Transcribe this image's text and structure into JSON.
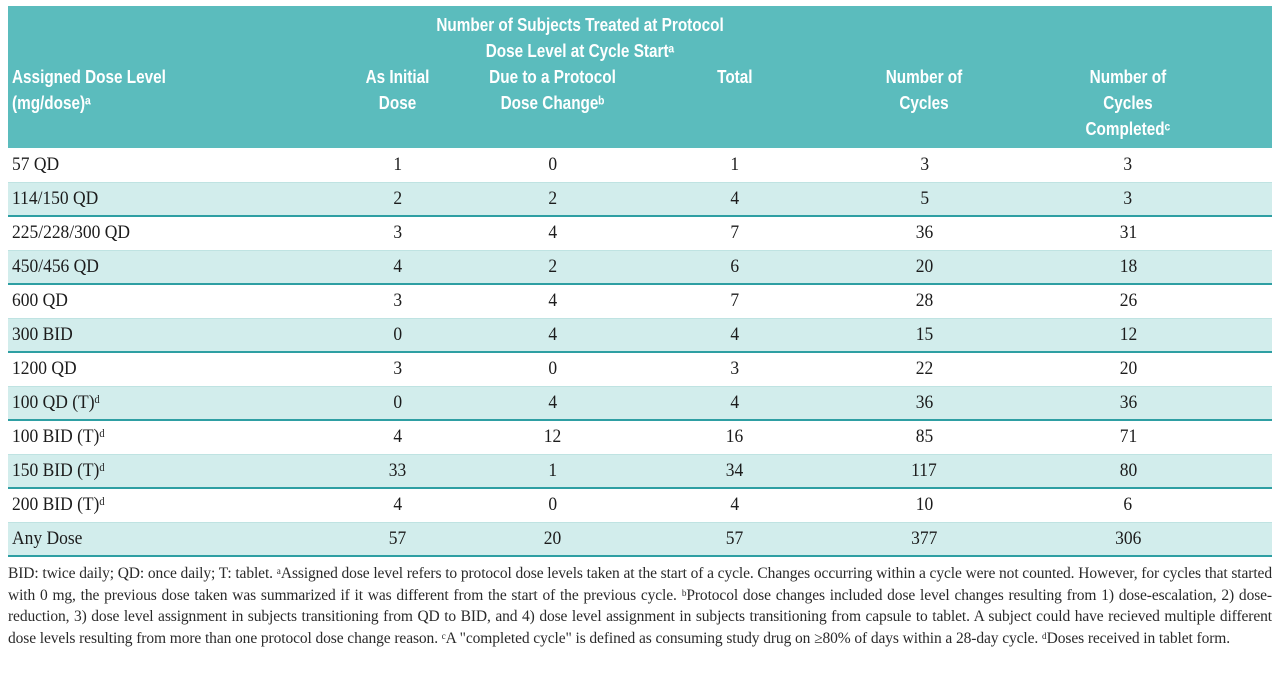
{
  "table": {
    "span_header": "Number of Subjects Treated at Protocol\nDose Level at Cycle Startᵃ",
    "columns": [
      "Assigned Dose Level\n(mg/dose)ᵃ",
      "As Initial\nDose",
      "Due to a Protocol\nDose Changeᵇ",
      "Total",
      "Number of\nCycles",
      "Number of\nCycles\nCompletedᶜ"
    ],
    "rows": [
      [
        "57 QD",
        "1",
        "0",
        "1",
        "3",
        "3"
      ],
      [
        "114/150 QD",
        "2",
        "2",
        "4",
        "5",
        "3"
      ],
      [
        "225/228/300 QD",
        "3",
        "4",
        "7",
        "36",
        "31"
      ],
      [
        "450/456 QD",
        "4",
        "2",
        "6",
        "20",
        "18"
      ],
      [
        "600 QD",
        "3",
        "4",
        "7",
        "28",
        "26"
      ],
      [
        "300 BID",
        "0",
        "4",
        "4",
        "15",
        "12"
      ],
      [
        "1200 QD",
        "3",
        "0",
        "3",
        "22",
        "20"
      ],
      [
        "100 QD (T)ᵈ",
        "0",
        "4",
        "4",
        "36",
        "36"
      ],
      [
        "100 BID (T)ᵈ",
        "4",
        "12",
        "16",
        "85",
        "71"
      ],
      [
        "150 BID (T)ᵈ",
        "33",
        "1",
        "34",
        "117",
        "80"
      ],
      [
        "200 BID (T)ᵈ",
        "4",
        "0",
        "4",
        "10",
        "6"
      ],
      [
        "Any Dose",
        "57",
        "20",
        "57",
        "377",
        "306"
      ]
    ]
  },
  "footnote": "BID: twice daily; QD: once daily; T: tablet. ᵃAssigned dose level refers to protocol dose levels taken at the start of a cycle. Changes occurring within a cycle were not counted. However, for cycles that started with 0 mg, the previous dose taken was summarized if it was different from the start of the previous cycle. ᵇProtocol dose changes included dose level changes resulting from 1) dose-escalation, 2) dose-reduction, 3) dose level assignment in subjects transitioning from QD to BID, and 4) dose level assignment in subjects transitioning from capsule to tablet. A subject could have recieved multiple different dose levels resulting from more than one protocol dose change reason. ᶜA \"completed cycle\" is defined as consuming study drug on ≥80% of days within a 28-day cycle. ᵈDoses received in tablet form.",
  "colors": {
    "header_teal": "#5bbcbd",
    "stripe": "#d2edec",
    "stripe_line": "#2e9fa3"
  }
}
